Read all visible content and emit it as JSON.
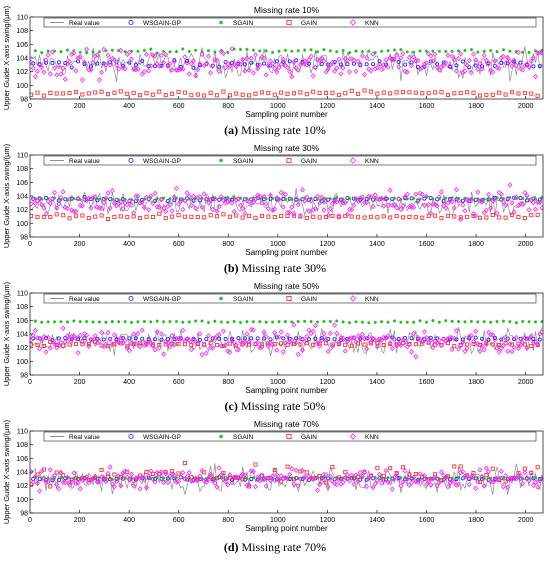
{
  "captions": [
    {
      "letter": "(a)",
      "text": "Missing rate 10%"
    },
    {
      "letter": "(b)",
      "text": "Missing rate 30%"
    },
    {
      "letter": "(c)",
      "text": "Missing rate 50%"
    },
    {
      "letter": "(d)",
      "text": "Missing rate 70%"
    }
  ],
  "chart_data": [
    {
      "type": "line",
      "title": "Missing rate 10%",
      "xlabel": "Sampling point number",
      "ylabel": "Upper Guide X-axis swing/(μm)",
      "xlim": [
        0,
        2070
      ],
      "ylim": [
        98,
        110
      ],
      "xticks": [
        0,
        200,
        400,
        600,
        800,
        1000,
        1200,
        1400,
        1600,
        1800,
        2000
      ],
      "yticks": [
        98,
        100,
        102,
        104,
        106,
        108,
        110
      ],
      "grid": false,
      "legend": {
        "placement": "top",
        "orientation": "horizontal"
      },
      "series": [
        {
          "name": "Real value",
          "marker": "line",
          "color": "#8c8c8c",
          "level": 103.2,
          "spread": 2.1,
          "gaps": [
            [
              1300,
              1350
            ]
          ]
        },
        {
          "name": "WSGAIN-GP",
          "marker": "o",
          "color": "#1a1aff",
          "level": 103.1,
          "spread": 0.6
        },
        {
          "name": "SGAIN",
          "marker": "*",
          "color": "#22bb22",
          "level": 105.0,
          "spread": 0.3
        },
        {
          "name": "GAIN",
          "marker": "square",
          "color": "#ff2020",
          "level": 98.8,
          "spread": 0.4
        },
        {
          "name": "KNN",
          "marker": "diamond",
          "color": "#ff1fff",
          "level": 103.2,
          "spread": 2.0
        }
      ]
    },
    {
      "type": "line",
      "title": "Missing rate 30%",
      "xlabel": "Sampling point number",
      "ylabel": "Upper Guide X-axis swing/(μm)",
      "xlim": [
        0,
        2070
      ],
      "ylim": [
        98,
        110
      ],
      "xticks": [
        0,
        200,
        400,
        600,
        800,
        1000,
        1200,
        1400,
        1600,
        1800,
        2000
      ],
      "yticks": [
        98,
        100,
        102,
        104,
        106,
        108,
        110
      ],
      "grid": false,
      "legend": {
        "placement": "top",
        "orientation": "horizontal"
      },
      "series": [
        {
          "name": "Real value",
          "marker": "line",
          "color": "#8c8c8c",
          "level": 102.9,
          "spread": 1.8
        },
        {
          "name": "WSGAIN-GP",
          "marker": "o",
          "color": "#1a1aff",
          "level": 103.5,
          "spread": 0.25
        },
        {
          "name": "SGAIN",
          "marker": "*",
          "color": "#22bb22",
          "level": 103.6,
          "spread": 0.2
        },
        {
          "name": "GAIN",
          "marker": "square",
          "color": "#ff2020",
          "level": 101.0,
          "spread": 0.3
        },
        {
          "name": "KNN",
          "marker": "diamond",
          "color": "#ff1fff",
          "level": 103.0,
          "spread": 2.0
        }
      ]
    },
    {
      "type": "line",
      "title": "Missing rate 50%",
      "xlabel": "Sampling point number",
      "ylabel": "Upper Guide X-axis swing/(μm)",
      "xlim": [
        0,
        2070
      ],
      "ylim": [
        98,
        110
      ],
      "xticks": [
        0,
        200,
        400,
        600,
        800,
        1000,
        1200,
        1400,
        1600,
        1800,
        2000
      ],
      "yticks": [
        98,
        100,
        102,
        104,
        106,
        108,
        110
      ],
      "grid": false,
      "legend": {
        "placement": "top",
        "orientation": "horizontal"
      },
      "series": [
        {
          "name": "Real value",
          "marker": "line",
          "color": "#8c8c8c",
          "level": 102.9,
          "spread": 2.0
        },
        {
          "name": "WSGAIN-GP",
          "marker": "o",
          "color": "#1a1aff",
          "level": 103.3,
          "spread": 0.2
        },
        {
          "name": "SGAIN",
          "marker": "*",
          "color": "#22bb22",
          "level": 105.8,
          "spread": 0.15
        },
        {
          "name": "GAIN",
          "marker": "square",
          "color": "#ff2020",
          "level": 102.5,
          "spread": 0.3
        },
        {
          "name": "KNN",
          "marker": "diamond",
          "color": "#ff1fff",
          "level": 103.0,
          "spread": 1.8
        }
      ]
    },
    {
      "type": "line",
      "title": "Missing rate 70%",
      "xlabel": "Sampling point number",
      "ylabel": "Upper Guide X-axis swing/(μm)",
      "xlim": [
        0,
        2070
      ],
      "ylim": [
        98,
        110
      ],
      "xticks": [
        0,
        200,
        400,
        600,
        800,
        1000,
        1200,
        1400,
        1600,
        1800,
        2000
      ],
      "yticks": [
        98,
        100,
        102,
        104,
        106,
        108,
        110
      ],
      "grid": false,
      "legend": {
        "placement": "top",
        "orientation": "horizontal"
      },
      "series": [
        {
          "name": "Real value",
          "marker": "line",
          "color": "#8c8c8c",
          "level": 102.8,
          "spread": 2.2
        },
        {
          "name": "WSGAIN-GP",
          "marker": "o",
          "color": "#1a1aff",
          "level": 103.0,
          "spread": 0.2
        },
        {
          "name": "SGAIN",
          "marker": "*",
          "color": "#22bb22",
          "level": 103.1,
          "spread": 0.15
        },
        {
          "name": "GAIN",
          "marker": "square",
          "color": "#ff2020",
          "level": 103.6,
          "spread": 1.5
        },
        {
          "name": "KNN",
          "marker": "diamond",
          "color": "#ff1fff",
          "level": 103.0,
          "spread": 1.4
        }
      ]
    }
  ]
}
